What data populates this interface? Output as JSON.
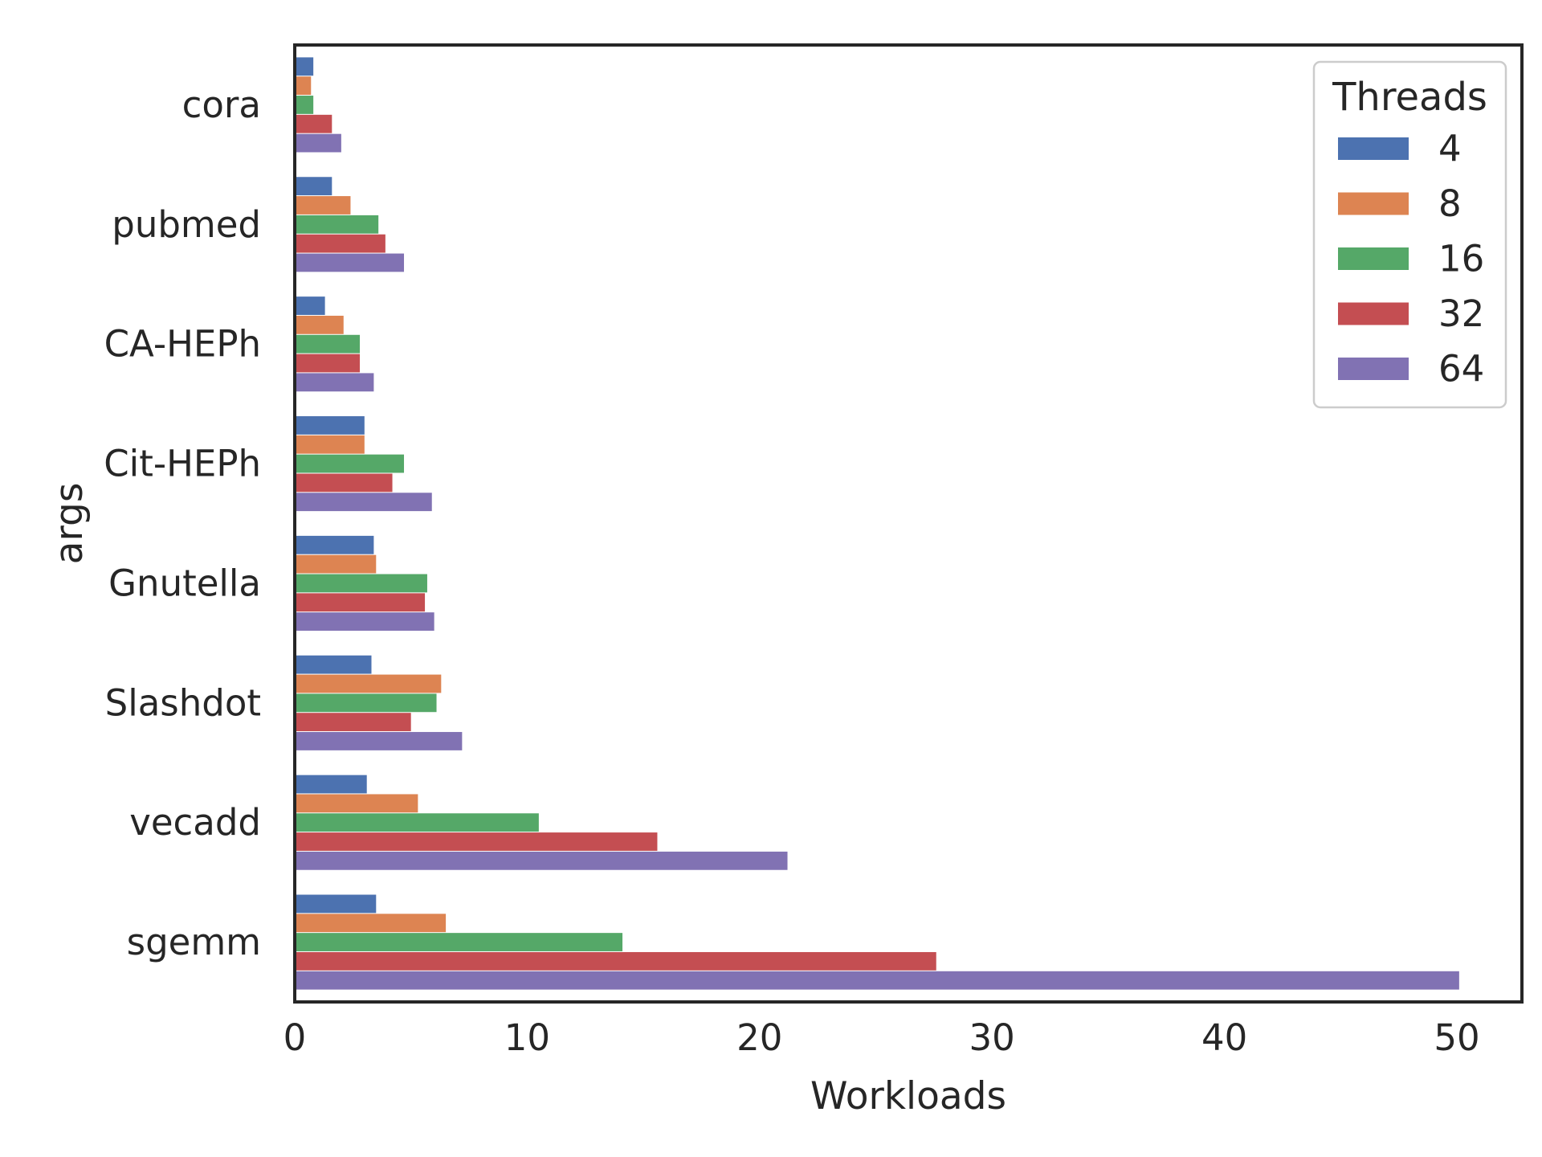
{
  "chart_data": {
    "type": "bar",
    "orientation": "horizontal",
    "xlabel": "Workloads",
    "ylabel": "args",
    "xlim": [
      0,
      52.8
    ],
    "xticks": [
      0,
      10,
      20,
      30,
      40,
      50
    ],
    "grid": false,
    "legend": {
      "title": "Threads",
      "position": "top-right"
    },
    "categories": [
      "cora",
      "pubmed",
      "CA-HEPh",
      "Cit-HEPh",
      "Gnutella",
      "Slashdot",
      "vecadd",
      "sgemm"
    ],
    "series": [
      {
        "name": "4",
        "color": "#4c72b0",
        "values": [
          0.8,
          1.6,
          1.3,
          3.0,
          3.4,
          3.3,
          3.1,
          3.5
        ]
      },
      {
        "name": "8",
        "color": "#dd8452",
        "values": [
          0.7,
          2.4,
          2.1,
          3.0,
          3.5,
          6.3,
          5.3,
          6.5
        ]
      },
      {
        "name": "16",
        "color": "#55a868",
        "values": [
          0.8,
          3.6,
          2.8,
          4.7,
          5.7,
          6.1,
          10.5,
          14.1
        ]
      },
      {
        "name": "32",
        "color": "#c44e52",
        "values": [
          1.6,
          3.9,
          2.8,
          4.2,
          5.6,
          5.0,
          15.6,
          27.6
        ]
      },
      {
        "name": "64",
        "color": "#8172b3",
        "values": [
          2.0,
          4.7,
          3.4,
          5.9,
          6.0,
          7.2,
          21.2,
          50.1
        ]
      }
    ]
  }
}
